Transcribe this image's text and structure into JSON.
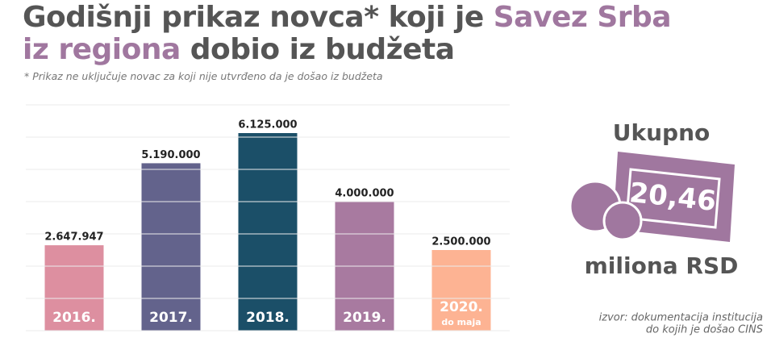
{
  "chart_data": {
    "type": "bar",
    "title_lines": [
      [
        {
          "text": "Godišnji prikaz novca* koji je"
        },
        {
          "text": "Savez Srba",
          "highlight": true
        }
      ],
      [
        {
          "text": "iz regiona",
          "highlight": true
        },
        {
          "text": "dobio iz budžeta"
        }
      ]
    ],
    "title_color": "#555555",
    "highlight_color": "#a0779f",
    "subtitle": "* Prikaz ne uključuje novac za koji nije utvrđeno da je došao iz budžeta",
    "categories": [
      "2016.",
      "2017.",
      "2018.",
      "2019.",
      "2020."
    ],
    "category_notes": [
      null,
      null,
      null,
      null,
      "do maja"
    ],
    "values": [
      2647947,
      5190000,
      6125000,
      4000000,
      2500000
    ],
    "value_labels": [
      "2.647.947",
      "5.190.000",
      "6.125.000",
      "4.000.000",
      "2.500.000"
    ],
    "colors": [
      "#dd8fa0",
      "#63638c",
      "#1b4f68",
      "#a87aa0",
      "#fdb393"
    ],
    "ylim": [
      0,
      7000000
    ],
    "yticks": [
      0,
      1000000,
      2000000,
      3000000,
      4000000,
      5000000,
      6000000,
      7000000
    ],
    "grid": true,
    "total_heading": "Ukupno",
    "total": {
      "value": 20.46,
      "label": "20,46"
    },
    "total_unit": "miliona RSD",
    "source_lines": [
      "izvor: dokumentacija institucija",
      "do kojih je došao CINS"
    ]
  }
}
